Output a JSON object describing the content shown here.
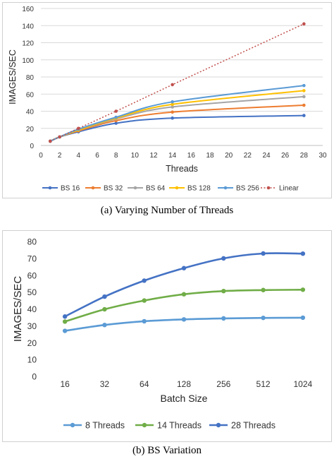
{
  "chart_data": [
    {
      "type": "line",
      "xlabel": "Threads",
      "ylabel": "IMAGES/SEC",
      "xlim": [
        0,
        30
      ],
      "ylim": [
        0,
        160
      ],
      "xticks": [
        "0",
        "2",
        "4",
        "6",
        "8",
        "10",
        "12",
        "14",
        "16",
        "18",
        "20",
        "22",
        "24",
        "26",
        "28",
        "30"
      ],
      "yticks": [
        "0",
        "20",
        "40",
        "60",
        "80",
        "100",
        "120",
        "140",
        "160"
      ],
      "grid": "horizontal",
      "legend_position": "bottom",
      "series": [
        {
          "name": "BS 16",
          "color": "#4472c4",
          "style": "solid",
          "x": [
            1,
            2,
            4,
            8,
            14,
            28
          ],
          "y": [
            5,
            10,
            16,
            26,
            32,
            35
          ]
        },
        {
          "name": "BS 32",
          "color": "#ed7d31",
          "style": "solid",
          "x": [
            1,
            2,
            4,
            8,
            14,
            28
          ],
          "y": [
            5,
            10,
            17,
            29,
            39,
            47
          ]
        },
        {
          "name": "BS 64",
          "color": "#a5a5a5",
          "style": "solid",
          "x": [
            1,
            2,
            4,
            8,
            14,
            28
          ],
          "y": [
            5,
            10,
            18,
            31,
            45,
            57
          ]
        },
        {
          "name": "BS 128",
          "color": "#ffc000",
          "style": "solid",
          "x": [
            1,
            2,
            4,
            8,
            14,
            28
          ],
          "y": [
            5,
            10,
            18,
            32,
            48,
            64
          ]
        },
        {
          "name": "BS 256",
          "color": "#5b9bd5",
          "style": "solid",
          "x": [
            1,
            2,
            4,
            8,
            14,
            28
          ],
          "y": [
            5,
            10,
            19,
            33,
            51,
            70
          ]
        },
        {
          "name": "Linear",
          "color": "#c0504d",
          "style": "dotted",
          "x": [
            1,
            2,
            4,
            8,
            14,
            28
          ],
          "y": [
            5,
            10,
            20,
            40,
            71,
            142
          ]
        }
      ]
    },
    {
      "type": "line",
      "xlabel": "Batch Size",
      "ylabel": "IMAGES/SEC",
      "categories": [
        "16",
        "32",
        "64",
        "128",
        "256",
        "512",
        "1024"
      ],
      "ylim": [
        0,
        80
      ],
      "yticks": [
        "0",
        "10",
        "20",
        "30",
        "40",
        "50",
        "60",
        "70",
        "80"
      ],
      "grid": "none",
      "legend_position": "bottom",
      "series": [
        {
          "name": "8 Threads",
          "color": "#5b9bd5",
          "values": [
            27,
            30.5,
            32.7,
            33.8,
            34.4,
            34.7,
            34.8
          ]
        },
        {
          "name": "14 Threads",
          "color": "#70ad47",
          "values": [
            32.5,
            39.8,
            45,
            48.7,
            50.6,
            51.2,
            51.4
          ]
        },
        {
          "name": "28 Threads",
          "color": "#4472c4",
          "values": [
            35.5,
            47.3,
            56.8,
            64.2,
            70,
            72.9,
            72.8
          ]
        }
      ]
    }
  ],
  "captions": {
    "a": "(a)  Varying Number of Threads",
    "b": "(b)  BS Variation"
  }
}
